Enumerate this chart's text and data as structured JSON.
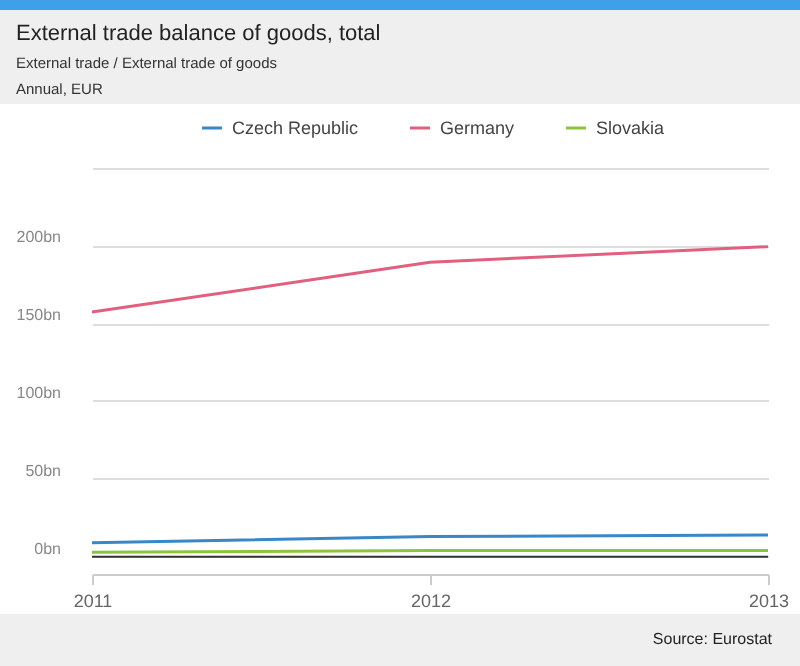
{
  "chart_data": {
    "type": "line",
    "title": "External trade balance of goods, total",
    "subtitle": "External trade / External trade of goods\nAnnual, EUR",
    "x": [
      2011,
      2012,
      2013
    ],
    "series": [
      {
        "name": "Czech Republic",
        "color": "#3a87c8",
        "values": [
          9,
          13,
          14
        ]
      },
      {
        "name": "Germany",
        "color": "#e0607e",
        "values": [
          157,
          189,
          199
        ]
      },
      {
        "name": "Slovakia",
        "color": "#8cc43c",
        "values": [
          3,
          4,
          4
        ]
      }
    ],
    "xlim": [
      2011,
      2013
    ],
    "xticks": [
      2011,
      2012,
      2013
    ],
    "ylim": [
      -11,
      252
    ],
    "yticks": [
      {
        "value": 0,
        "label": "0bn"
      },
      {
        "value": 50,
        "label": "50bn"
      },
      {
        "value": 100,
        "label": "100bn"
      },
      {
        "value": 150,
        "label": "150bn"
      },
      {
        "value": 200,
        "label": "200bn"
      },
      {
        "value": 250,
        "label": null
      }
    ],
    "ref_lines": [
      {
        "axis": "y",
        "value": 0,
        "color": "#333333"
      }
    ],
    "grid": "y",
    "legend": "top",
    "marker": "none",
    "line_style": "solid",
    "annotations": [
      "Source: Eurostat"
    ]
  }
}
